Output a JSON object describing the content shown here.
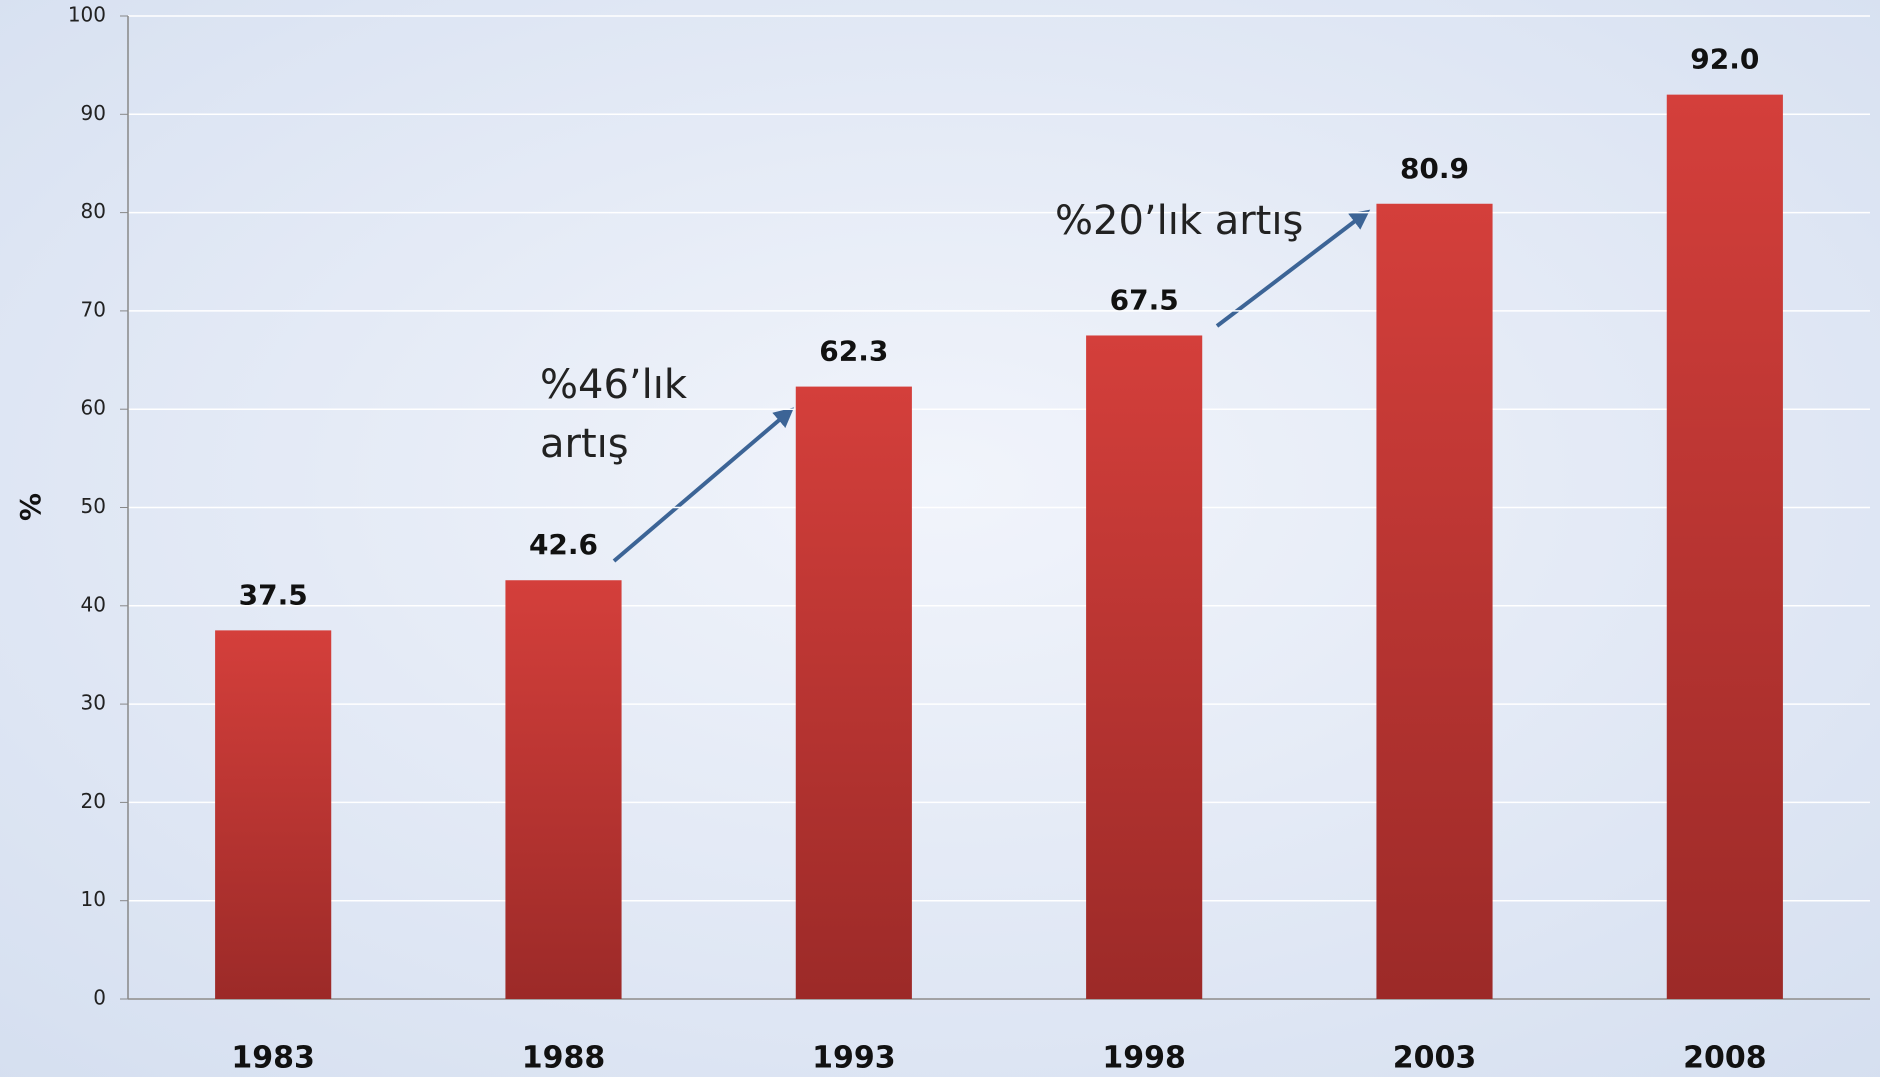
{
  "chart_data": {
    "type": "bar",
    "y_label": "%",
    "categories": [
      "1983",
      "1988",
      "1993",
      "1998",
      "2003",
      "2008"
    ],
    "values": [
      37.5,
      42.6,
      62.3,
      67.5,
      80.9,
      92.0
    ],
    "value_labels": [
      "37.5",
      "42.6",
      "62.3",
      "67.5",
      "80.9",
      "92.0"
    ],
    "color": "#c9393a",
    "ylim": [
      0,
      100
    ],
    "yticks": [
      0,
      10,
      20,
      30,
      40,
      50,
      60,
      70,
      80,
      90,
      100
    ],
    "grid": true,
    "annotations": [
      {
        "lines": [
          "%46’lık",
          "artış"
        ]
      },
      {
        "lines": [
          "%20’lık artış"
        ]
      }
    ]
  }
}
